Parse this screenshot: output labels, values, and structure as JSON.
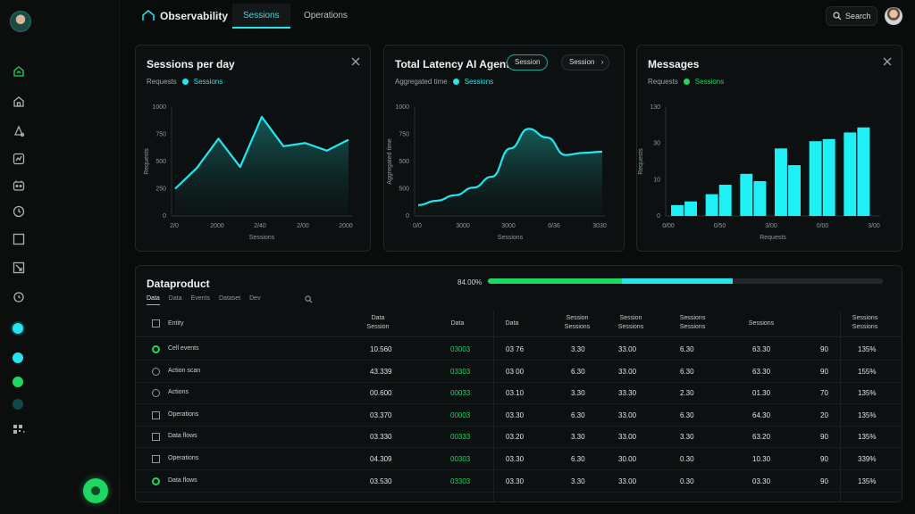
{
  "app": {
    "title": "Observability"
  },
  "colors": {
    "cyan": "#24e6ee",
    "green": "#1ed760",
    "bg": "#0a0b0b",
    "card": "#0d1010"
  },
  "topbar": {
    "tabs": [
      {
        "label": "Sessions",
        "active": true
      },
      {
        "label": "Operations",
        "active": false
      }
    ],
    "search_label": "Search"
  },
  "sidebar": {
    "icons": [
      "dashboard-icon",
      "home-icon",
      "alert-icon",
      "analytics-icon",
      "inbox-icon",
      "clock-icon",
      "square-icon",
      "expand-icon",
      "history-icon"
    ],
    "status_dots": [
      "#24e6ee",
      "#24e6ee",
      "#1ed760",
      "#0e4a4a"
    ]
  },
  "cards": [
    {
      "title": "Sessions per day",
      "legend_prefix": "Requests",
      "legend_label": "Sessions",
      "legend_color": "#24e6ee",
      "has_close": true,
      "chart_data": {
        "type": "line",
        "x_ticks": [
          "2/0",
          "2000",
          "2/40",
          "2/00",
          "2000"
        ],
        "y_ticks": [
          "0",
          "250",
          "500",
          "750",
          "1000"
        ],
        "ylabel": "Requests",
        "xlabel": "Sessions",
        "ylim": [
          0,
          1000
        ],
        "x": [
          0,
          1,
          2,
          3,
          4,
          5,
          6,
          7,
          8
        ],
        "values": [
          250,
          440,
          710,
          450,
          910,
          640,
          670,
          600,
          700
        ]
      }
    },
    {
      "title": "Total Latency AI Agents",
      "legend_prefix": "Aggregated time",
      "legend_label": "Sessions",
      "legend_color": "#24e6ee",
      "pills": [
        "Session",
        "Session"
      ],
      "chart_data": {
        "type": "area",
        "x_ticks": [
          "0/0",
          "3000",
          "3000",
          "0/36",
          "3030"
        ],
        "y_ticks": [
          "0",
          "500",
          "500",
          "750",
          "1000"
        ],
        "ylabel": "Aggregated time",
        "xlabel": "Sessions",
        "ylim": [
          0,
          1000
        ],
        "x": [
          0,
          1,
          2,
          3,
          4,
          5,
          6,
          7,
          8,
          9,
          10
        ],
        "values": [
          100,
          140,
          190,
          260,
          360,
          620,
          800,
          720,
          560,
          580,
          590
        ]
      }
    },
    {
      "title": "Messages",
      "legend_prefix": "Requests",
      "legend_label": "Sessions",
      "legend_color": "#1ed760",
      "has_close": true,
      "chart_data": {
        "type": "bar",
        "x_ticks": [
          "0/00",
          "0/50",
          "3/00",
          "0/00",
          "3/00"
        ],
        "y_ticks": [
          "0",
          "10",
          "30",
          "130"
        ],
        "ylabel": "Requests",
        "xlabel": "Requests",
        "ylim": [
          0,
          150
        ],
        "values": [
          15,
          20,
          30,
          43,
          58,
          48,
          93,
          70,
          103,
          106,
          115,
          122
        ]
      }
    }
  ],
  "table": {
    "title": "Dataproduct",
    "progress_label": "84.00%",
    "progress_green": 0.34,
    "progress_cyan": 0.28,
    "subtabs": [
      "Data",
      "Data",
      "Events",
      "Dataset",
      "Dev"
    ],
    "headers": [
      {
        "label": "Entity"
      },
      {
        "label": "Data Session"
      },
      {
        "label": "Data"
      },
      {
        "label": "Data"
      },
      {
        "label": "Session Sessions"
      },
      {
        "label": "Session Sessions"
      },
      {
        "label": "Sessions Sessions"
      },
      {
        "label": "Sessions"
      },
      {
        "label": "Sessions Sessions"
      }
    ],
    "rows": [
      {
        "check": "circle-on",
        "name": "Cell events",
        "c1": "10.560",
        "c2": "03003",
        "c3": "03 76",
        "c4": "3.30",
        "c5": "33.00",
        "c6": "6.30",
        "c7": "63.30",
        "c8": "90",
        "c9": "135%"
      },
      {
        "check": "circle",
        "name": "Action scan",
        "c1": "43.339",
        "c2": "03303",
        "c3": "03 00",
        "c4": "6.30",
        "c5": "33.00",
        "c6": "6.30",
        "c7": "63.30",
        "c8": "90",
        "c9": "155%"
      },
      {
        "check": "circle",
        "name": "Actions",
        "c1": "00.600",
        "c2": "00033",
        "c3": "03.10",
        "c4": "3.30",
        "c5": "33.30",
        "c6": "2.30",
        "c7": "01.30",
        "c8": "70",
        "c9": "135%"
      },
      {
        "check": "square",
        "name": "Operations",
        "c1": "03.370",
        "c2": "00003",
        "c3": "03.30",
        "c4": "6.30",
        "c5": "33.00",
        "c6": "6.30",
        "c7": "64.30",
        "c8": "20",
        "c9": "135%"
      },
      {
        "check": "square",
        "name": "Data flows",
        "c1": "03.330",
        "c2": "00333",
        "c3": "03.20",
        "c4": "3.30",
        "c5": "33.00",
        "c6": "3.30",
        "c7": "63.20",
        "c8": "90",
        "c9": "135%"
      },
      {
        "check": "square",
        "name": "Operations",
        "c1": "04.309",
        "c2": "00303",
        "c3": "03.30",
        "c4": "6.30",
        "c5": "30.00",
        "c6": "0.30",
        "c7": "10.30",
        "c8": "90",
        "c9": "339%"
      },
      {
        "check": "circle-on",
        "name": "Data flows",
        "c1": "03.530",
        "c2": "03303",
        "c3": "03.30",
        "c4": "3.30",
        "c5": "33.00",
        "c6": "0.30",
        "c7": "03.30",
        "c8": "90",
        "c9": "135%"
      }
    ]
  }
}
